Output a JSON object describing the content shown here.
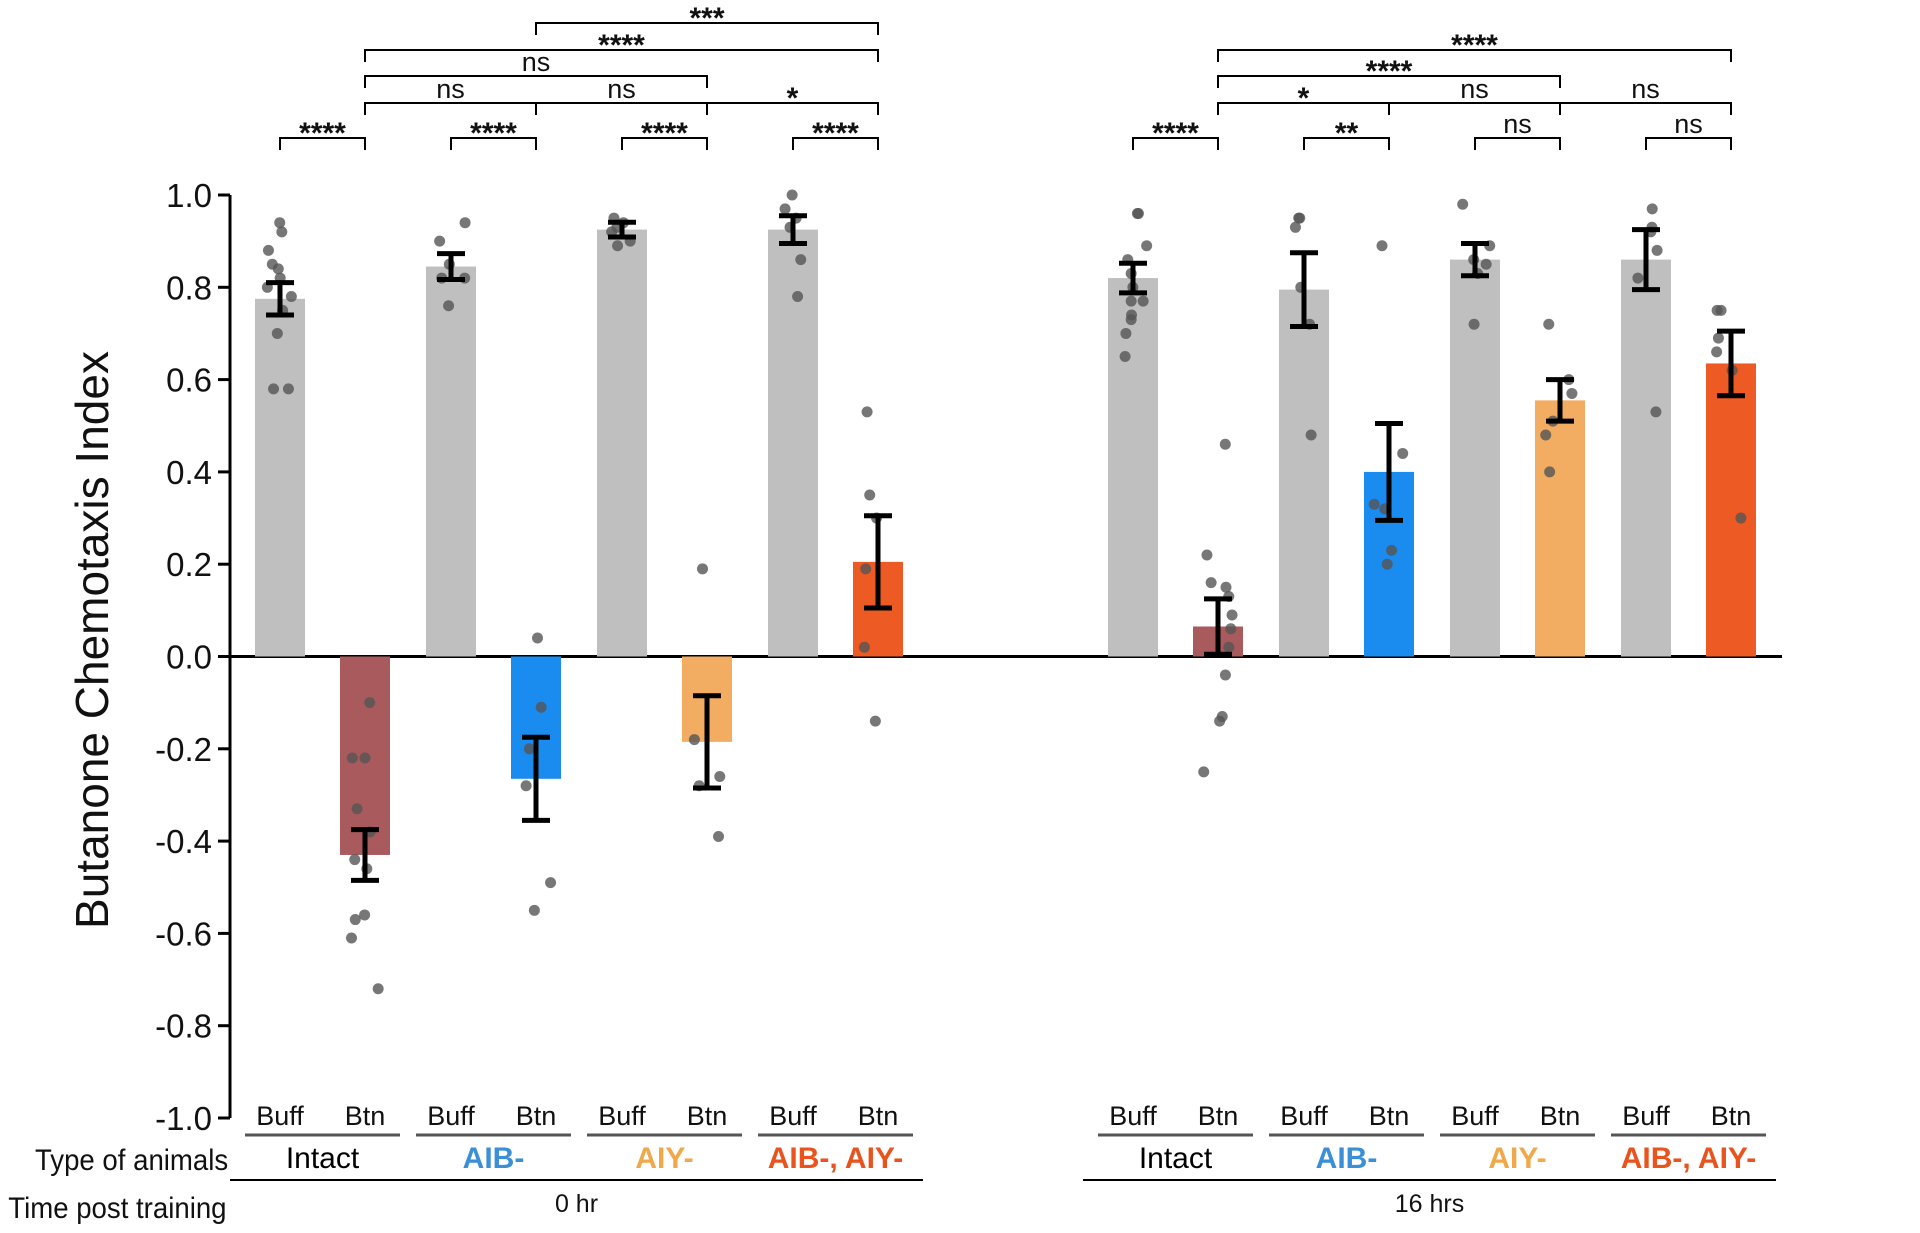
{
  "chart_data": {
    "type": "bar",
    "ylabel": "Butanone Chemotaxis Index",
    "ylim": [
      -1.0,
      1.0
    ],
    "yticks": [
      "1.0",
      "0.8",
      "0.6",
      "0.4",
      "0.2",
      "0.0",
      "-0.2",
      "-0.4",
      "-0.6",
      "-0.8",
      "-1.0"
    ],
    "row_labels": {
      "type": "Type of animals",
      "time": "Time post training"
    },
    "timepoints": [
      "0 hr",
      "16 hrs"
    ],
    "conditions": [
      "Buff",
      "Btn"
    ],
    "groups": [
      {
        "label": "Intact",
        "color": "#000000"
      },
      {
        "label": "AIB-",
        "color": "#3a8fd6"
      },
      {
        "label": "AIY-",
        "color": "#f0a94a"
      },
      {
        "label": "AIB-, AIY-",
        "color": "#e9541e"
      }
    ],
    "bars": [
      {
        "time": 0,
        "group": 0,
        "cond": "Buff",
        "mean": 0.775,
        "err": 0.035,
        "color": "#bfbfbf",
        "points": [
          0.94,
          0.92,
          0.88,
          0.85,
          0.84,
          0.82,
          0.8,
          0.78,
          0.75,
          0.7,
          0.58,
          0.58
        ]
      },
      {
        "time": 0,
        "group": 0,
        "cond": "Btn",
        "mean": -0.43,
        "err": 0.055,
        "color": "#a85a5d",
        "points": [
          -0.1,
          -0.22,
          -0.22,
          -0.33,
          -0.38,
          -0.44,
          -0.46,
          -0.56,
          -0.57,
          -0.61,
          -0.72
        ]
      },
      {
        "time": 0,
        "group": 1,
        "cond": "Buff",
        "mean": 0.845,
        "err": 0.028,
        "color": "#bfbfbf",
        "points": [
          0.94,
          0.9,
          0.85,
          0.82,
          0.82,
          0.76
        ]
      },
      {
        "time": 0,
        "group": 1,
        "cond": "Btn",
        "mean": -0.265,
        "err": 0.09,
        "color": "#1a8cf0",
        "points": [
          0.04,
          -0.11,
          -0.2,
          -0.28,
          -0.49,
          -0.55
        ]
      },
      {
        "time": 0,
        "group": 2,
        "cond": "Buff",
        "mean": 0.925,
        "err": 0.016,
        "color": "#bfbfbf",
        "points": [
          0.95,
          0.94,
          0.93,
          0.92,
          0.9,
          0.89
        ]
      },
      {
        "time": 0,
        "group": 2,
        "cond": "Btn",
        "mean": -0.185,
        "err": 0.1,
        "color": "#f2ad63",
        "points": [
          0.19,
          -0.18,
          -0.26,
          -0.28,
          -0.39
        ]
      },
      {
        "time": 0,
        "group": 3,
        "cond": "Buff",
        "mean": 0.925,
        "err": 0.03,
        "color": "#bfbfbf",
        "points": [
          1.0,
          0.97,
          0.95,
          0.93,
          0.86,
          0.78
        ]
      },
      {
        "time": 0,
        "group": 3,
        "cond": "Btn",
        "mean": 0.205,
        "err": 0.1,
        "color": "#ee5a24",
        "points": [
          0.53,
          0.35,
          0.3,
          0.19,
          0.02,
          -0.14
        ]
      },
      {
        "time": 1,
        "group": 0,
        "cond": "Buff",
        "mean": 0.82,
        "err": 0.032,
        "color": "#bfbfbf",
        "points": [
          0.96,
          0.96,
          0.89,
          0.86,
          0.83,
          0.8,
          0.77,
          0.77,
          0.74,
          0.73,
          0.7,
          0.65
        ]
      },
      {
        "time": 1,
        "group": 0,
        "cond": "Btn",
        "mean": 0.065,
        "err": 0.06,
        "color": "#a85a5d",
        "points": [
          0.46,
          0.22,
          0.16,
          0.15,
          0.13,
          0.09,
          0.06,
          0.02,
          -0.04,
          -0.13,
          -0.14,
          -0.25
        ]
      },
      {
        "time": 1,
        "group": 1,
        "cond": "Buff",
        "mean": 0.795,
        "err": 0.08,
        "color": "#bfbfbf",
        "points": [
          0.95,
          0.95,
          0.93,
          0.8,
          0.72,
          0.48
        ]
      },
      {
        "time": 1,
        "group": 1,
        "cond": "Btn",
        "mean": 0.4,
        "err": 0.105,
        "color": "#1a8cf0",
        "points": [
          0.89,
          0.44,
          0.33,
          0.32,
          0.23,
          0.2
        ]
      },
      {
        "time": 1,
        "group": 2,
        "cond": "Buff",
        "mean": 0.86,
        "err": 0.035,
        "color": "#bfbfbf",
        "points": [
          0.98,
          0.89,
          0.86,
          0.85,
          0.83,
          0.72
        ]
      },
      {
        "time": 1,
        "group": 2,
        "cond": "Btn",
        "mean": 0.555,
        "err": 0.045,
        "color": "#f2ad63",
        "points": [
          0.72,
          0.6,
          0.57,
          0.51,
          0.48,
          0.4
        ]
      },
      {
        "time": 1,
        "group": 3,
        "cond": "Buff",
        "mean": 0.86,
        "err": 0.065,
        "color": "#bfbfbf",
        "points": [
          0.97,
          0.93,
          0.92,
          0.88,
          0.82,
          0.53
        ]
      },
      {
        "time": 1,
        "group": 3,
        "cond": "Btn",
        "mean": 0.635,
        "err": 0.07,
        "color": "#ee5a24",
        "points": [
          0.75,
          0.75,
          0.69,
          0.66,
          0.62,
          0.3
        ]
      }
    ],
    "significance": [
      {
        "from": 0,
        "to": 1,
        "label": "****"
      },
      {
        "from": 2,
        "to": 3,
        "label": "****"
      },
      {
        "from": 4,
        "to": 5,
        "label": "****"
      },
      {
        "from": 6,
        "to": 7,
        "label": "****"
      },
      {
        "from": 1,
        "to": 3,
        "label": "ns"
      },
      {
        "from": 3,
        "to": 5,
        "label": "ns"
      },
      {
        "from": 5,
        "to": 7,
        "label": "*"
      },
      {
        "from": 1,
        "to": 5,
        "label": "ns"
      },
      {
        "from": 1,
        "to": 7,
        "label": "****"
      },
      {
        "from": 3,
        "to": 7,
        "label": "***"
      },
      {
        "from": 8,
        "to": 9,
        "label": "****"
      },
      {
        "from": 10,
        "to": 11,
        "label": "**"
      },
      {
        "from": 12,
        "to": 13,
        "label": "ns"
      },
      {
        "from": 14,
        "to": 15,
        "label": "ns"
      },
      {
        "from": 9,
        "to": 11,
        "label": "*"
      },
      {
        "from": 11,
        "to": 13,
        "label": "ns"
      },
      {
        "from": 13,
        "to": 15,
        "label": "ns"
      },
      {
        "from": 9,
        "to": 13,
        "label": "****"
      },
      {
        "from": 9,
        "to": 15,
        "label": "****"
      }
    ]
  }
}
